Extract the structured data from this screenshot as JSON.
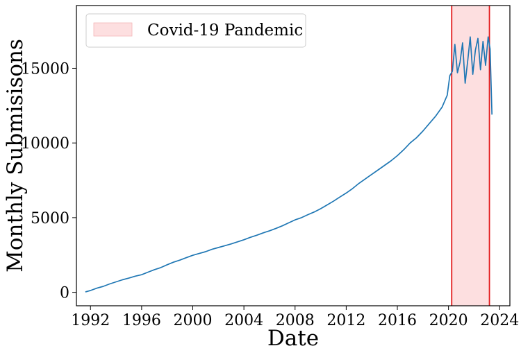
{
  "chart_data": {
    "type": "line",
    "title": "",
    "xlabel": "Date",
    "ylabel": "Monthly Submisisons",
    "xlim": [
      1990.9,
      2024.8
    ],
    "ylim": [
      -900,
      19200
    ],
    "xticks": [
      1992,
      1996,
      2000,
      2004,
      2008,
      2012,
      2016,
      2020,
      2024
    ],
    "xtick_labels": [
      "1992",
      "1996",
      "2000",
      "2004",
      "2008",
      "2012",
      "2016",
      "2020",
      "2024"
    ],
    "yticks": [
      0,
      5000,
      10000,
      15000
    ],
    "ytick_labels": [
      "0",
      "5000",
      "10000",
      "15000"
    ],
    "grid": false,
    "legend": {
      "placement": "top-left",
      "entries": [
        {
          "label": "Covid-19 Pandemic",
          "color": "#fddfe0"
        }
      ]
    },
    "shaded_region": {
      "label": "Covid-19 Pandemic",
      "x_start": 2020.25,
      "x_end": 2023.2,
      "fill": "#fddfe0",
      "edge": "#e31a1c"
    },
    "series": [
      {
        "color": "#1f77b4",
        "x": [
          1991.6,
          1992.0,
          1992.5,
          1993.0,
          1993.5,
          1994.0,
          1994.5,
          1995.0,
          1995.5,
          1996.0,
          1996.5,
          1997.0,
          1997.5,
          1998.0,
          1998.5,
          1999.0,
          1999.5,
          2000.0,
          2000.5,
          2001.0,
          2001.5,
          2002.0,
          2002.5,
          2003.0,
          2003.5,
          2004.0,
          2004.5,
          2005.0,
          2005.5,
          2006.0,
          2006.5,
          2007.0,
          2007.5,
          2008.0,
          2008.5,
          2009.0,
          2009.5,
          2010.0,
          2010.5,
          2011.0,
          2011.5,
          2012.0,
          2012.5,
          2013.0,
          2013.5,
          2014.0,
          2014.5,
          2015.0,
          2015.5,
          2016.0,
          2016.5,
          2017.0,
          2017.5,
          2018.0,
          2018.5,
          2019.0,
          2019.5,
          2019.9,
          2020.1,
          2020.3,
          2020.5,
          2020.7,
          2020.9,
          2021.1,
          2021.3,
          2021.5,
          2021.7,
          2021.9,
          2022.1,
          2022.3,
          2022.5,
          2022.7,
          2022.9,
          2023.1,
          2023.25,
          2023.4
        ],
        "y": [
          30,
          120,
          280,
          400,
          560,
          700,
          840,
          950,
          1080,
          1180,
          1350,
          1520,
          1660,
          1850,
          2020,
          2160,
          2320,
          2480,
          2600,
          2720,
          2880,
          3000,
          3120,
          3240,
          3380,
          3520,
          3680,
          3820,
          3980,
          4120,
          4280,
          4450,
          4650,
          4850,
          5000,
          5200,
          5380,
          5600,
          5850,
          6100,
          6380,
          6650,
          6950,
          7300,
          7600,
          7900,
          8200,
          8500,
          8800,
          9150,
          9550,
          10000,
          10350,
          10800,
          11300,
          11800,
          12400,
          13200,
          14500,
          14800,
          16600,
          14700,
          15400,
          16700,
          14000,
          15500,
          17100,
          14600,
          16200,
          17000,
          14900,
          16800,
          15200,
          17100,
          16300,
          11900
        ]
      }
    ]
  }
}
